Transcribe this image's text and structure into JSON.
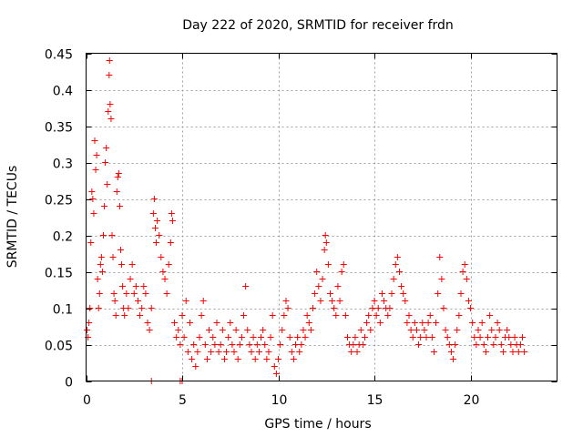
{
  "chart_data": {
    "type": "scatter",
    "title": "Day 222 of 2020, SRMTID for receiver frdn",
    "xlabel": "GPS time / hours",
    "ylabel": "SRMTID / TECUs",
    "xlim": [
      0,
      24.5
    ],
    "ylim": [
      0,
      0.45
    ],
    "x_ticks": [
      0,
      5,
      10,
      15,
      20
    ],
    "x_tick_labels": [
      "0",
      "5",
      "10",
      "15",
      "20"
    ],
    "y_ticks": [
      0,
      0.05,
      0.1,
      0.15,
      0.2,
      0.25,
      0.3,
      0.35,
      0.4,
      0.45
    ],
    "y_tick_labels": [
      "0",
      "0.05",
      "0.1",
      "0.15",
      "0.2",
      "0.25",
      "0.3",
      "0.35",
      "0.4",
      "0.45"
    ],
    "grid": true,
    "marker": "+",
    "series": [
      {
        "name": "SRMTID",
        "color": "#ff0000",
        "points": [
          [
            0.05,
            0.07
          ],
          [
            0.1,
            0.06
          ],
          [
            0.15,
            0.08
          ],
          [
            0.2,
            0.1
          ],
          [
            0.25,
            0.19
          ],
          [
            0.3,
            0.26
          ],
          [
            0.35,
            0.25
          ],
          [
            0.4,
            0.23
          ],
          [
            0.45,
            0.33
          ],
          [
            0.5,
            0.29
          ],
          [
            0.55,
            0.31
          ],
          [
            0.6,
            0.14
          ],
          [
            0.65,
            0.1
          ],
          [
            0.7,
            0.12
          ],
          [
            0.75,
            0.16
          ],
          [
            0.8,
            0.17
          ],
          [
            0.85,
            0.15
          ],
          [
            0.9,
            0.2
          ],
          [
            0.95,
            0.24
          ],
          [
            1.0,
            0.3
          ],
          [
            1.05,
            0.32
          ],
          [
            1.1,
            0.27
          ],
          [
            1.15,
            0.37
          ],
          [
            1.2,
            0.42
          ],
          [
            1.22,
            0.44
          ],
          [
            1.25,
            0.38
          ],
          [
            1.3,
            0.36
          ],
          [
            1.35,
            0.2
          ],
          [
            1.4,
            0.17
          ],
          [
            1.45,
            0.12
          ],
          [
            1.5,
            0.11
          ],
          [
            1.55,
            0.09
          ],
          [
            1.6,
            0.26
          ],
          [
            1.65,
            0.28
          ],
          [
            1.7,
            0.285
          ],
          [
            1.75,
            0.24
          ],
          [
            1.8,
            0.18
          ],
          [
            1.85,
            0.16
          ],
          [
            1.9,
            0.13
          ],
          [
            1.95,
            0.1
          ],
          [
            2.0,
            0.09
          ],
          [
            2.1,
            0.12
          ],
          [
            2.2,
            0.1
          ],
          [
            2.3,
            0.14
          ],
          [
            2.4,
            0.16
          ],
          [
            2.5,
            0.12
          ],
          [
            2.6,
            0.13
          ],
          [
            2.7,
            0.11
          ],
          [
            2.8,
            0.09
          ],
          [
            2.9,
            0.1
          ],
          [
            3.0,
            0.13
          ],
          [
            3.1,
            0.12
          ],
          [
            3.2,
            0.08
          ],
          [
            3.3,
            0.07
          ],
          [
            3.4,
            0.1
          ],
          [
            3.5,
            0.23
          ],
          [
            3.55,
            0.25
          ],
          [
            3.6,
            0.21
          ],
          [
            3.65,
            0.19
          ],
          [
            3.7,
            0.22
          ],
          [
            3.8,
            0.2
          ],
          [
            3.9,
            0.17
          ],
          [
            4.0,
            0.15
          ],
          [
            4.1,
            0.14
          ],
          [
            4.2,
            0.12
          ],
          [
            4.3,
            0.16
          ],
          [
            4.4,
            0.19
          ],
          [
            4.45,
            0.23
          ],
          [
            4.5,
            0.22
          ],
          [
            4.6,
            0.08
          ],
          [
            4.7,
            0.06
          ],
          [
            4.8,
            0.07
          ],
          [
            4.9,
            0.05
          ],
          [
            5.0,
            0.09
          ],
          [
            5.1,
            0.06
          ],
          [
            5.2,
            0.11
          ],
          [
            5.3,
            0.04
          ],
          [
            5.4,
            0.08
          ],
          [
            5.5,
            0.03
          ],
          [
            5.6,
            0.05
          ],
          [
            5.7,
            0.02
          ],
          [
            5.8,
            0.04
          ],
          [
            5.9,
            0.06
          ],
          [
            6.0,
            0.09
          ],
          [
            6.1,
            0.11
          ],
          [
            6.2,
            0.05
          ],
          [
            6.3,
            0.03
          ],
          [
            6.4,
            0.07
          ],
          [
            6.5,
            0.04
          ],
          [
            6.6,
            0.06
          ],
          [
            6.7,
            0.05
          ],
          [
            6.8,
            0.08
          ],
          [
            6.9,
            0.04
          ],
          [
            7.0,
            0.05
          ],
          [
            7.1,
            0.07
          ],
          [
            7.2,
            0.03
          ],
          [
            7.3,
            0.04
          ],
          [
            7.4,
            0.06
          ],
          [
            7.5,
            0.08
          ],
          [
            7.6,
            0.05
          ],
          [
            7.7,
            0.04
          ],
          [
            7.8,
            0.07
          ],
          [
            7.9,
            0.03
          ],
          [
            8.0,
            0.05
          ],
          [
            8.1,
            0.06
          ],
          [
            8.2,
            0.09
          ],
          [
            8.3,
            0.13
          ],
          [
            8.4,
            0.07
          ],
          [
            8.5,
            0.05
          ],
          [
            8.6,
            0.04
          ],
          [
            8.7,
            0.06
          ],
          [
            8.8,
            0.03
          ],
          [
            8.9,
            0.05
          ],
          [
            9.0,
            0.04
          ],
          [
            9.1,
            0.06
          ],
          [
            9.2,
            0.07
          ],
          [
            9.3,
            0.05
          ],
          [
            9.4,
            0.03
          ],
          [
            9.5,
            0.04
          ],
          [
            9.6,
            0.06
          ],
          [
            9.7,
            0.09
          ],
          [
            9.8,
            0.02
          ],
          [
            9.9,
            0.01
          ],
          [
            10.0,
            0.03
          ],
          [
            10.1,
            0.05
          ],
          [
            10.2,
            0.07
          ],
          [
            10.3,
            0.09
          ],
          [
            10.4,
            0.11
          ],
          [
            10.5,
            0.1
          ],
          [
            10.6,
            0.06
          ],
          [
            10.7,
            0.04
          ],
          [
            10.8,
            0.03
          ],
          [
            10.9,
            0.05
          ],
          [
            11.0,
            0.06
          ],
          [
            11.1,
            0.04
          ],
          [
            11.2,
            0.05
          ],
          [
            11.3,
            0.07
          ],
          [
            11.4,
            0.06
          ],
          [
            11.5,
            0.09
          ],
          [
            11.6,
            0.08
          ],
          [
            11.7,
            0.07
          ],
          [
            11.8,
            0.1
          ],
          [
            11.9,
            0.12
          ],
          [
            12.0,
            0.15
          ],
          [
            12.1,
            0.13
          ],
          [
            12.2,
            0.11
          ],
          [
            12.3,
            0.14
          ],
          [
            12.4,
            0.18
          ],
          [
            12.45,
            0.2
          ],
          [
            12.5,
            0.19
          ],
          [
            12.6,
            0.16
          ],
          [
            12.7,
            0.12
          ],
          [
            12.8,
            0.11
          ],
          [
            12.9,
            0.1
          ],
          [
            13.0,
            0.09
          ],
          [
            13.1,
            0.13
          ],
          [
            13.2,
            0.11
          ],
          [
            13.3,
            0.15
          ],
          [
            13.4,
            0.16
          ],
          [
            13.5,
            0.09
          ],
          [
            13.6,
            0.06
          ],
          [
            13.7,
            0.05
          ],
          [
            13.8,
            0.04
          ],
          [
            13.9,
            0.05
          ],
          [
            14.0,
            0.06
          ],
          [
            14.1,
            0.04
          ],
          [
            14.2,
            0.05
          ],
          [
            14.3,
            0.07
          ],
          [
            14.4,
            0.05
          ],
          [
            14.5,
            0.06
          ],
          [
            14.6,
            0.08
          ],
          [
            14.7,
            0.09
          ],
          [
            14.8,
            0.07
          ],
          [
            14.9,
            0.1
          ],
          [
            15.0,
            0.11
          ],
          [
            15.1,
            0.09
          ],
          [
            15.2,
            0.1
          ],
          [
            15.3,
            0.08
          ],
          [
            15.4,
            0.12
          ],
          [
            15.5,
            0.11
          ],
          [
            15.6,
            0.1
          ],
          [
            15.7,
            0.09
          ],
          [
            15.8,
            0.1
          ],
          [
            15.9,
            0.12
          ],
          [
            16.0,
            0.14
          ],
          [
            16.1,
            0.16
          ],
          [
            16.2,
            0.17
          ],
          [
            16.3,
            0.15
          ],
          [
            16.4,
            0.13
          ],
          [
            16.5,
            0.12
          ],
          [
            16.6,
            0.11
          ],
          [
            16.7,
            0.08
          ],
          [
            16.8,
            0.09
          ],
          [
            16.9,
            0.07
          ],
          [
            17.0,
            0.06
          ],
          [
            17.1,
            0.08
          ],
          [
            17.2,
            0.07
          ],
          [
            17.3,
            0.05
          ],
          [
            17.4,
            0.06
          ],
          [
            17.5,
            0.08
          ],
          [
            17.6,
            0.07
          ],
          [
            17.7,
            0.06
          ],
          [
            17.8,
            0.08
          ],
          [
            17.9,
            0.09
          ],
          [
            18.0,
            0.06
          ],
          [
            18.1,
            0.04
          ],
          [
            18.2,
            0.08
          ],
          [
            18.3,
            0.12
          ],
          [
            18.4,
            0.17
          ],
          [
            18.5,
            0.14
          ],
          [
            18.6,
            0.1
          ],
          [
            18.7,
            0.07
          ],
          [
            18.8,
            0.06
          ],
          [
            18.9,
            0.05
          ],
          [
            19.0,
            0.04
          ],
          [
            19.1,
            0.03
          ],
          [
            19.2,
            0.05
          ],
          [
            19.3,
            0.07
          ],
          [
            19.4,
            0.09
          ],
          [
            19.5,
            0.12
          ],
          [
            19.6,
            0.15
          ],
          [
            19.7,
            0.16
          ],
          [
            19.8,
            0.14
          ],
          [
            19.9,
            0.11
          ],
          [
            20.0,
            0.1
          ],
          [
            20.1,
            0.08
          ],
          [
            20.2,
            0.06
          ],
          [
            20.3,
            0.05
          ],
          [
            20.4,
            0.07
          ],
          [
            20.5,
            0.06
          ],
          [
            20.6,
            0.08
          ],
          [
            20.7,
            0.05
          ],
          [
            20.8,
            0.04
          ],
          [
            20.9,
            0.06
          ],
          [
            21.0,
            0.09
          ],
          [
            21.1,
            0.07
          ],
          [
            21.2,
            0.05
          ],
          [
            21.3,
            0.06
          ],
          [
            21.4,
            0.08
          ],
          [
            21.5,
            0.07
          ],
          [
            21.6,
            0.05
          ],
          [
            21.7,
            0.04
          ],
          [
            21.8,
            0.06
          ],
          [
            21.9,
            0.07
          ],
          [
            22.0,
            0.06
          ],
          [
            22.1,
            0.05
          ],
          [
            22.2,
            0.04
          ],
          [
            22.3,
            0.06
          ],
          [
            22.4,
            0.05
          ],
          [
            22.5,
            0.04
          ],
          [
            22.6,
            0.05
          ],
          [
            22.7,
            0.06
          ],
          [
            22.8,
            0.04
          ],
          [
            3.4,
            0.0
          ],
          [
            4.9,
            0.0
          ],
          [
            5.0,
            0.0
          ]
        ]
      }
    ]
  }
}
